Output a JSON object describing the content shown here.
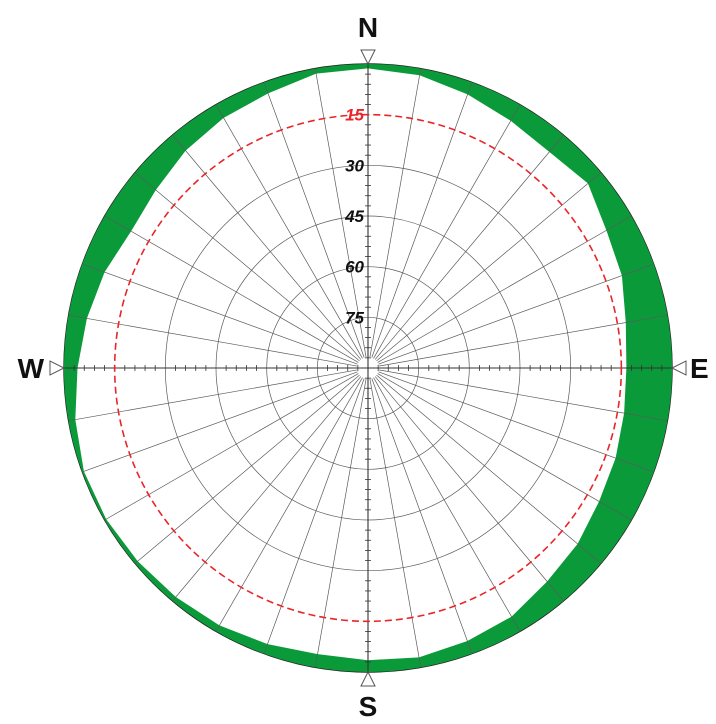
{
  "chart_data": {
    "type": "polar-horizon",
    "cardinals": {
      "north": "N",
      "east": "E",
      "south": "S",
      "west": "W"
    },
    "elevation_rings": [
      {
        "label": "15",
        "elevation": 15
      },
      {
        "label": "30",
        "elevation": 30
      },
      {
        "label": "45",
        "elevation": 45
      },
      {
        "label": "60",
        "elevation": 60
      },
      {
        "label": "75",
        "elevation": 75
      }
    ],
    "radial_angle_step_deg": 10,
    "elevation_range": [
      0,
      90
    ],
    "reference_circle": {
      "elevation": 15,
      "color": "#e8262a",
      "style": "dashed"
    },
    "horizon_fill_color": "#0b9a3a",
    "horizon_profile": {
      "azimuth_step_deg": 10,
      "azimuth_deg": [
        0,
        10,
        20,
        30,
        40,
        50,
        60,
        70,
        80,
        90,
        100,
        110,
        120,
        130,
        140,
        150,
        160,
        170,
        180,
        190,
        200,
        210,
        220,
        230,
        240,
        250,
        260,
        270,
        280,
        290,
        300,
        310,
        320,
        330,
        340,
        350
      ],
      "elevation_deg": [
        1.3,
        2.0,
        3.8,
        5.5,
        6.5,
        5.0,
        8.5,
        10.0,
        12.5,
        13.5,
        13.0,
        12.0,
        11.0,
        9.0,
        7.5,
        5.0,
        4.0,
        3.0,
        3.5,
        4.0,
        3.0,
        2.0,
        1.5,
        1.0,
        0.5,
        0.5,
        2.0,
        4.0,
        5.5,
        7.0,
        9.0,
        8.0,
        6.0,
        4.5,
        3.5,
        1.5
      ]
    }
  }
}
